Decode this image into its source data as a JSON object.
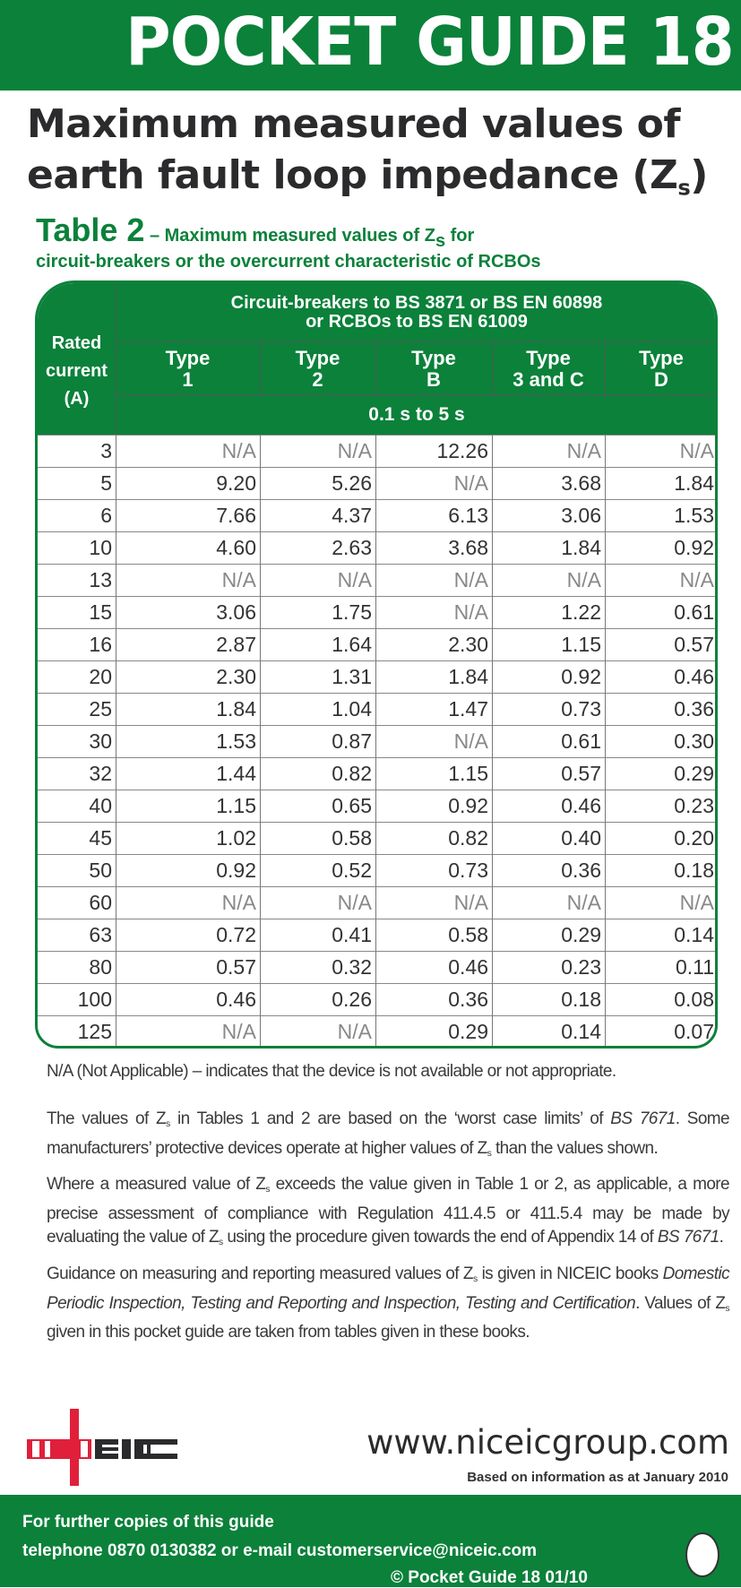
{
  "header": {
    "title": "POCKET GUIDE 18"
  },
  "heading": {
    "line1": "Maximum measured values of",
    "line2": "earth fault loop impedance (Z",
    "line2_sub": "s",
    "line2_end": ")"
  },
  "table_caption": {
    "label": "Table 2",
    "text1": " – Maximum measured values of Z",
    "sub": "s",
    "text2": " for",
    "line2": "circuit-breakers or the overcurrent characteristic of RCBOs"
  },
  "table": {
    "rated_header": [
      "Rated",
      "current",
      "(A)"
    ],
    "group_header": [
      "Circuit-breakers to BS 3871 or BS EN 60898",
      "or RCBOs to BS EN 61009"
    ],
    "type_headers": [
      [
        "Type",
        "1"
      ],
      [
        "Type",
        "2"
      ],
      [
        "Type",
        "B"
      ],
      [
        "Type",
        "3 and C"
      ],
      [
        "Type",
        "D"
      ]
    ],
    "time_range": "0.1 s to 5 s",
    "rows": [
      [
        "3",
        "N/A",
        "N/A",
        "12.26",
        "N/A",
        "N/A"
      ],
      [
        "5",
        "9.20",
        "5.26",
        "N/A",
        "3.68",
        "1.84"
      ],
      [
        "6",
        "7.66",
        "4.37",
        "6.13",
        "3.06",
        "1.53"
      ],
      [
        "10",
        "4.60",
        "2.63",
        "3.68",
        "1.84",
        "0.92"
      ],
      [
        "13",
        "N/A",
        "N/A",
        "N/A",
        "N/A",
        "N/A"
      ],
      [
        "15",
        "3.06",
        "1.75",
        "N/A",
        "1.22",
        "0.61"
      ],
      [
        "16",
        "2.87",
        "1.64",
        "2.30",
        "1.15",
        "0.57"
      ],
      [
        "20",
        "2.30",
        "1.31",
        "1.84",
        "0.92",
        "0.46"
      ],
      [
        "25",
        "1.84",
        "1.04",
        "1.47",
        "0.73",
        "0.36"
      ],
      [
        "30",
        "1.53",
        "0.87",
        "N/A",
        "0.61",
        "0.30"
      ],
      [
        "32",
        "1.44",
        "0.82",
        "1.15",
        "0.57",
        "0.29"
      ],
      [
        "40",
        "1.15",
        "0.65",
        "0.92",
        "0.46",
        "0.23"
      ],
      [
        "45",
        "1.02",
        "0.58",
        "0.82",
        "0.40",
        "0.20"
      ],
      [
        "50",
        "0.92",
        "0.52",
        "0.73",
        "0.36",
        "0.18"
      ],
      [
        "60",
        "N/A",
        "N/A",
        "N/A",
        "N/A",
        "N/A"
      ],
      [
        "63",
        "0.72",
        "0.41",
        "0.58",
        "0.29",
        "0.14"
      ],
      [
        "80",
        "0.57",
        "0.32",
        "0.46",
        "0.23",
        "0.11"
      ],
      [
        "100",
        "0.46",
        "0.26",
        "0.36",
        "0.18",
        "0.08"
      ],
      [
        "125",
        "N/A",
        "N/A",
        "0.29",
        "0.14",
        "0.07"
      ]
    ]
  },
  "notes": {
    "na_note": "N/A (Not Applicable) – indicates that the device is not available or not appropriate.",
    "paragraphs": [
      [
        {
          "t": "The values of Z"
        },
        {
          "t": "s",
          "s": "sub"
        },
        {
          "t": " in Tables 1 and 2 are based on the ‘worst case limits’ of "
        },
        {
          "t": "BS 7671",
          "s": "i"
        },
        {
          "t": ". Some manufacturers’ protective devices operate at higher values of Z"
        },
        {
          "t": "s",
          "s": "sub"
        },
        {
          "t": " than the values shown."
        }
      ],
      [
        {
          "t": "Where a measured value of Z"
        },
        {
          "t": "s",
          "s": "sub"
        },
        {
          "t": " exceeds the value given in Table 1 or 2, as applicable, a more precise assessment of compliance with Regulation 411.4.5 or 411.5.4 may be made by evaluating the value of Z"
        },
        {
          "t": "s",
          "s": "sub"
        },
        {
          "t": " using the procedure given towards the end of Appendix 14 of "
        },
        {
          "t": "BS 7671",
          "s": "i"
        },
        {
          "t": "."
        }
      ],
      [
        {
          "t": "Guidance on measuring and reporting measured values of Z"
        },
        {
          "t": "s",
          "s": "sub"
        },
        {
          "t": " is given in NICEIC books "
        },
        {
          "t": "Domestic Periodic Inspection, Testing and Reporting and Inspection, Testing and Certification",
          "s": "i"
        },
        {
          "t": ". Values of Z"
        },
        {
          "t": "s",
          "s": "sub"
        },
        {
          "t": " given in this pocket guide are taken from tables given in these books."
        }
      ]
    ]
  },
  "footer": {
    "logo_text": "NICEIC",
    "url": "www.niceicgroup.com",
    "based_on": "Based on information as at January 2010",
    "copies_line": "For further copies of this guide",
    "contact_line": "telephone 0870 0130382 or e-mail customerservice@niceic.com",
    "copyright": "©  Pocket Guide 18   01/10"
  },
  "colors": {
    "brand_green": "#0b813a",
    "logo_red": "#e0203a",
    "na_grey": "#888888"
  }
}
